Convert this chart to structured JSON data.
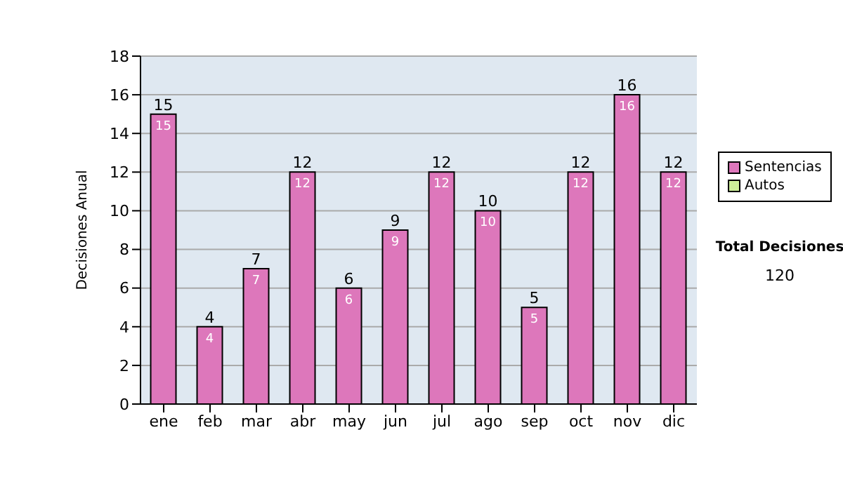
{
  "chart_data": {
    "type": "bar",
    "stacked": true,
    "ylabel": "Decisiones Anual",
    "categories": [
      "ene",
      "feb",
      "mar",
      "abr",
      "may",
      "jun",
      "jul",
      "ago",
      "sep",
      "oct",
      "nov",
      "dic"
    ],
    "series": [
      {
        "name": "Sentencias",
        "color": "#dd77bb",
        "values": [
          15,
          4,
          7,
          12,
          6,
          9,
          12,
          10,
          5,
          12,
          16,
          12
        ],
        "value_labels": [
          "15",
          "4",
          "7",
          "12",
          "6",
          "9",
          "12",
          "10",
          "5",
          "12",
          "16",
          "12"
        ]
      },
      {
        "name": "Autos",
        "color": "#ccee99",
        "values": [
          0,
          0,
          0,
          0,
          0,
          0,
          0,
          0,
          0,
          0,
          0,
          0
        ]
      }
    ],
    "totals": [
      "15",
      "4",
      "7",
      "12",
      "6",
      "9",
      "12",
      "10",
      "5",
      "12",
      "16",
      "12"
    ],
    "ylim": [
      0,
      18
    ],
    "yticks": [
      0,
      2,
      4,
      6,
      8,
      10,
      12,
      14,
      16,
      18
    ],
    "grid": "y",
    "legend": "right",
    "annotations": [
      "Total Decisiones",
      "120"
    ]
  }
}
